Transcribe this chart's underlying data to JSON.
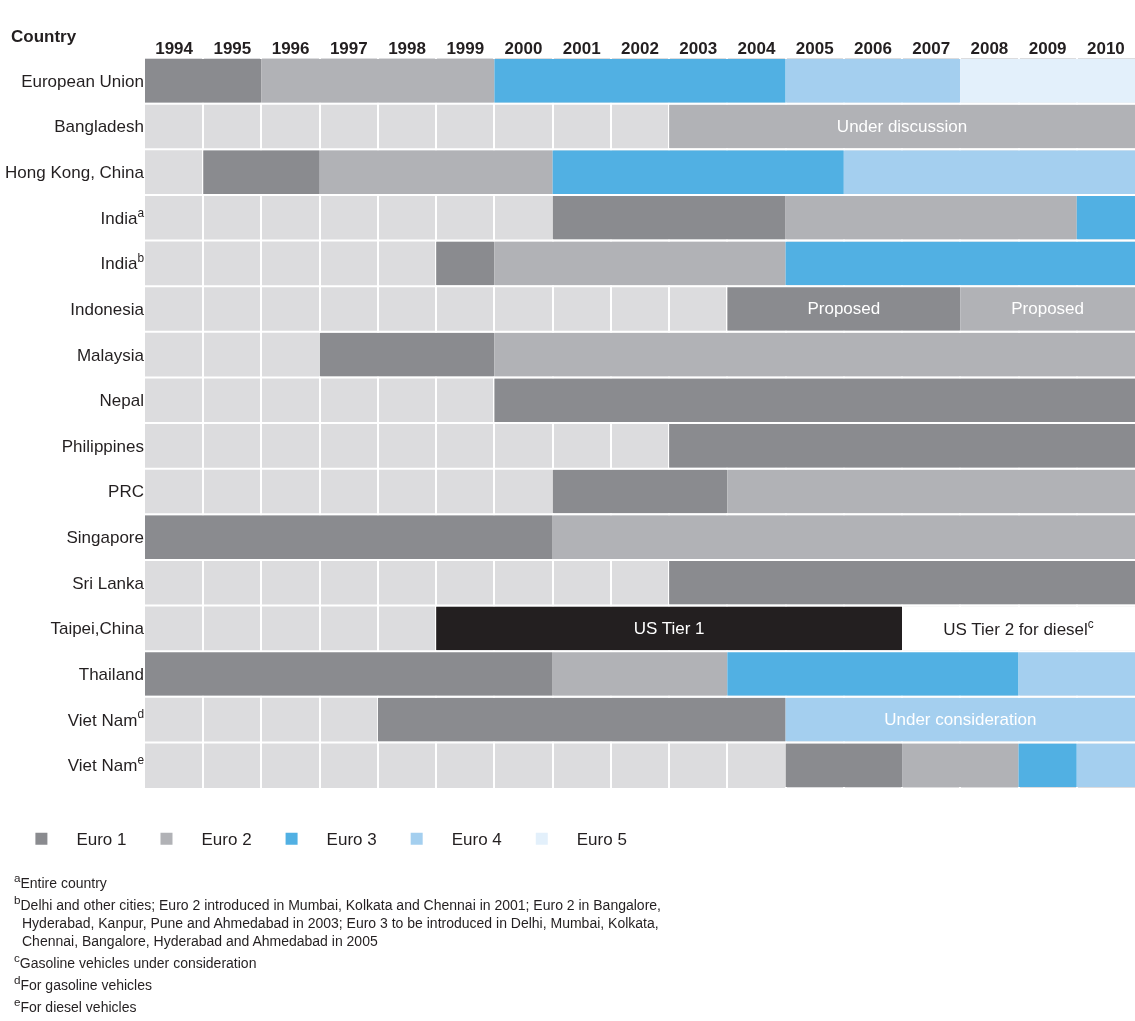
{
  "chart_data": {
    "type": "bar",
    "orientation": "horizontal",
    "ylabel": "Country",
    "categories": [
      "European Union",
      "Bangladesh",
      "Hong Kong, China",
      "India$^{a}$",
      "India$^{b}$",
      "Indonesia",
      "Malaysia",
      "Nepal",
      "Philippines",
      "PRC",
      "Singapore",
      "Sri Lanka",
      "Taipei,China",
      "Thailand",
      "Viet Nam$^{d}$",
      "Viet Nam$^{e}$"
    ],
    "xlim": [
      1994,
      2011
    ],
    "xticks": [
      {
        "value": 1994.5,
        "label": "1994"
      },
      {
        "value": 1995.5,
        "label": "1995"
      },
      {
        "value": 1996.5,
        "label": "1996"
      },
      {
        "value": 1997.5,
        "label": "1997"
      },
      {
        "value": 1998.5,
        "label": "1998"
      },
      {
        "value": 1999.5,
        "label": "1999"
      },
      {
        "value": 2000.5,
        "label": "2000"
      },
      {
        "value": 2001.5,
        "label": "2001"
      },
      {
        "value": 2002.5,
        "label": "2002"
      },
      {
        "value": 2003.5,
        "label": "2003"
      },
      {
        "value": 2004.5,
        "label": "2004"
      },
      {
        "value": 2005.5,
        "label": "2005"
      },
      {
        "value": 2006.5,
        "label": "2006"
      },
      {
        "value": 2007.5,
        "label": "2007"
      },
      {
        "value": 2008.5,
        "label": "2008"
      },
      {
        "value": 2009.5,
        "label": "2009"
      },
      {
        "value": 2010.5,
        "label": "2010"
      },
      {
        "value": 1995,
        "label": null
      },
      {
        "value": 1996,
        "label": null
      },
      {
        "value": 1997,
        "label": null
      },
      {
        "value": 1998,
        "label": null
      },
      {
        "value": 1999,
        "label": null
      },
      {
        "value": 2000,
        "label": null
      },
      {
        "value": 2001,
        "label": null
      },
      {
        "value": 2002,
        "label": null
      },
      {
        "value": 2003,
        "label": null
      },
      {
        "value": 2004,
        "label": null
      },
      {
        "value": 2005,
        "label": null
      },
      {
        "value": 2006,
        "label": null
      },
      {
        "value": 2007,
        "label": null
      },
      {
        "value": 2008,
        "label": null
      },
      {
        "value": 2009,
        "label": null
      },
      {
        "value": 2010,
        "label": null
      }
    ],
    "grid": true,
    "legend": "bottom",
    "series": [
      {
        "name": "Euro 1",
        "color": "#8a8b8f",
        "base": [
          1994,
          null,
          1995,
          2001,
          1999,
          2004,
          1997,
          2000,
          2003,
          2001,
          1994,
          2003,
          null,
          1994,
          1998,
          2005
        ],
        "values": [
          2,
          null,
          2,
          4,
          1,
          4,
          3,
          11,
          8,
          3,
          7,
          8,
          null,
          7,
          7,
          2
        ],
        "value_labels": [
          null,
          null,
          null,
          null,
          null,
          "Proposed",
          null,
          null,
          null,
          null,
          null,
          null,
          null,
          null,
          null,
          null
        ]
      },
      {
        "name": "Euro 2",
        "color": "#b1b2b6",
        "base": [
          1996,
          2003,
          1997,
          2005,
          2000,
          2008,
          2000,
          null,
          null,
          2004,
          2001,
          null,
          null,
          2001,
          null,
          2007
        ],
        "values": [
          4,
          8,
          4,
          5,
          5,
          3,
          11,
          null,
          null,
          7,
          10,
          null,
          null,
          3,
          null,
          2
        ],
        "value_labels": [
          null,
          "Under discussion",
          null,
          null,
          null,
          "Proposed",
          null,
          null,
          null,
          null,
          null,
          null,
          null,
          null,
          null,
          null
        ]
      },
      {
        "name": "Euro 3",
        "color": "#51b0e3",
        "base": [
          2000,
          null,
          2001,
          2010,
          2005,
          null,
          null,
          null,
          null,
          null,
          null,
          null,
          null,
          2004,
          null,
          2009
        ],
        "values": [
          5,
          null,
          5,
          1,
          6,
          null,
          null,
          null,
          null,
          null,
          null,
          null,
          null,
          5,
          null,
          1
        ]
      },
      {
        "name": "Euro 4",
        "color": "#a4cfef",
        "base": [
          2005,
          null,
          2006,
          null,
          null,
          null,
          null,
          null,
          null,
          null,
          null,
          null,
          null,
          2009,
          2005,
          2010
        ],
        "values": [
          3,
          null,
          5,
          null,
          null,
          null,
          null,
          null,
          null,
          null,
          null,
          null,
          null,
          2,
          6,
          1
        ],
        "value_labels": [
          null,
          null,
          null,
          null,
          null,
          null,
          null,
          null,
          null,
          null,
          null,
          null,
          null,
          null,
          "Under consideration",
          null
        ]
      },
      {
        "name": "Euro 5",
        "color": "#e3f0fb",
        "base": [
          2008,
          null,
          null,
          null,
          null,
          null,
          null,
          null,
          null,
          null,
          null,
          null,
          null,
          null,
          null,
          null
        ],
        "values": [
          3,
          null,
          null,
          null,
          null,
          null,
          null,
          null,
          null,
          null,
          null,
          null,
          null,
          null,
          null,
          null
        ]
      },
      {
        "color": "#231f20",
        "base": [
          null,
          null,
          null,
          null,
          null,
          null,
          null,
          null,
          null,
          null,
          null,
          null,
          1999,
          null,
          null,
          null
        ],
        "values": [
          null,
          null,
          null,
          null,
          null,
          null,
          null,
          null,
          null,
          null,
          null,
          null,
          8,
          null,
          null,
          null
        ],
        "value_labels": [
          null,
          null,
          null,
          null,
          null,
          null,
          null,
          null,
          null,
          null,
          null,
          null,
          "US Tier 1",
          null,
          null,
          null
        ]
      },
      {
        "color": "#ffffff",
        "base": [
          null,
          null,
          null,
          null,
          null,
          null,
          null,
          null,
          null,
          null,
          null,
          null,
          2007,
          null,
          null,
          null
        ],
        "values": [
          null,
          null,
          null,
          null,
          null,
          null,
          null,
          null,
          null,
          null,
          null,
          null,
          4,
          null,
          null,
          null
        ],
        "value_labels": [
          null,
          null,
          null,
          null,
          null,
          null,
          null,
          null,
          null,
          null,
          null,
          null,
          "US Tier 2 for diesel$^{c}$",
          null,
          null,
          null
        ]
      }
    ],
    "annotations": [
      "$^{a}$Entire country",
      "$^{b}$Delhi and other cities; Euro 2 introduced in Mumbai, Kolkata and Chennai in 2001; Euro 2 in Bangalore, Hyderabad, Kanpur, Pune and Ahmedabad in 2003; Euro 3 to be introduced in Delhi, Mumbai, Kolkata, Chennai, Bangalore, Hyderabad and Ahmedabad in 2005",
      "$^{c}$Gasoline vehicles under consideration",
      "$^{d}$For gasoline vehicles",
      "$^{e}$For diesel vehicles"
    ]
  }
}
